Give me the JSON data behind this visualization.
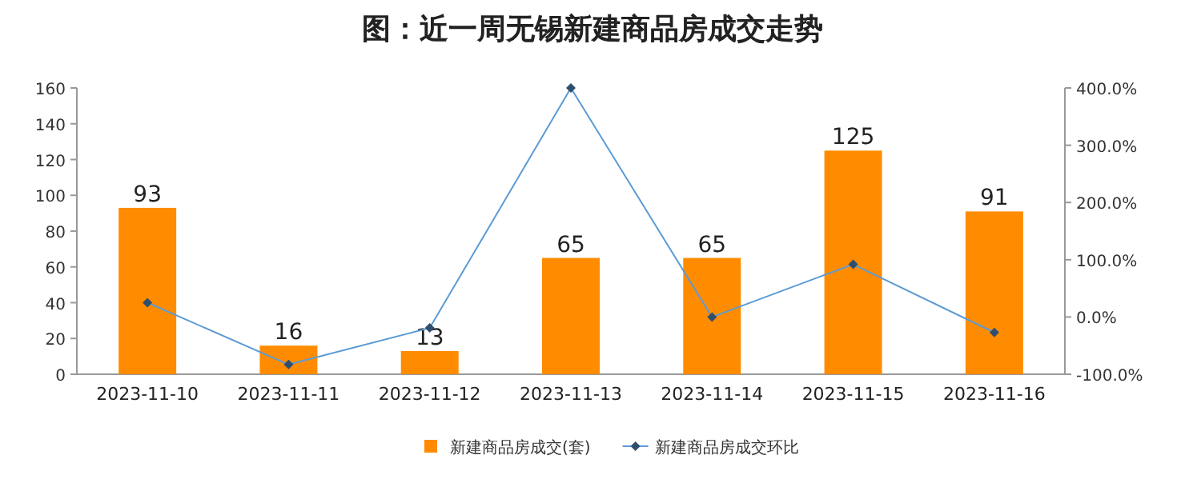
{
  "chart_data": {
    "type": "bar",
    "title": "图：近一周无锡新建商品房成交走势",
    "categories": [
      "2023-11-10",
      "2023-11-11",
      "2023-11-12",
      "2023-11-13",
      "2023-11-14",
      "2023-11-15",
      "2023-11-16"
    ],
    "series": [
      {
        "name": "新建商品房成交(套)",
        "color": "#ff8c00",
        "values": [
          93,
          16,
          13,
          65,
          65,
          125,
          91
        ],
        "value_labels": [
          "93",
          "16",
          "13",
          "65",
          "65",
          "125",
          "91"
        ]
      },
      {
        "name": "新建商品房成交环比",
        "type": "line",
        "axis": "y2",
        "color": "#5b9bd5",
        "marker": "diamond",
        "values": [
          25,
          -83,
          -19,
          400,
          0,
          92,
          -27
        ]
      }
    ],
    "ylim": [
      0,
      160
    ],
    "yticks": [
      0,
      20,
      40,
      60,
      80,
      100,
      120,
      140,
      160
    ],
    "y2lim": [
      -100,
      400
    ],
    "y2ticks": [
      {
        "value": -100,
        "label": "-100.0%"
      },
      {
        "value": 0,
        "label": "0.0%"
      },
      {
        "value": 100,
        "label": "100.0%"
      },
      {
        "value": 200,
        "label": "200.0%"
      },
      {
        "value": 300,
        "label": "300.0%"
      },
      {
        "value": 400,
        "label": "400.0%"
      }
    ],
    "legend": "bottom",
    "grid": false
  }
}
